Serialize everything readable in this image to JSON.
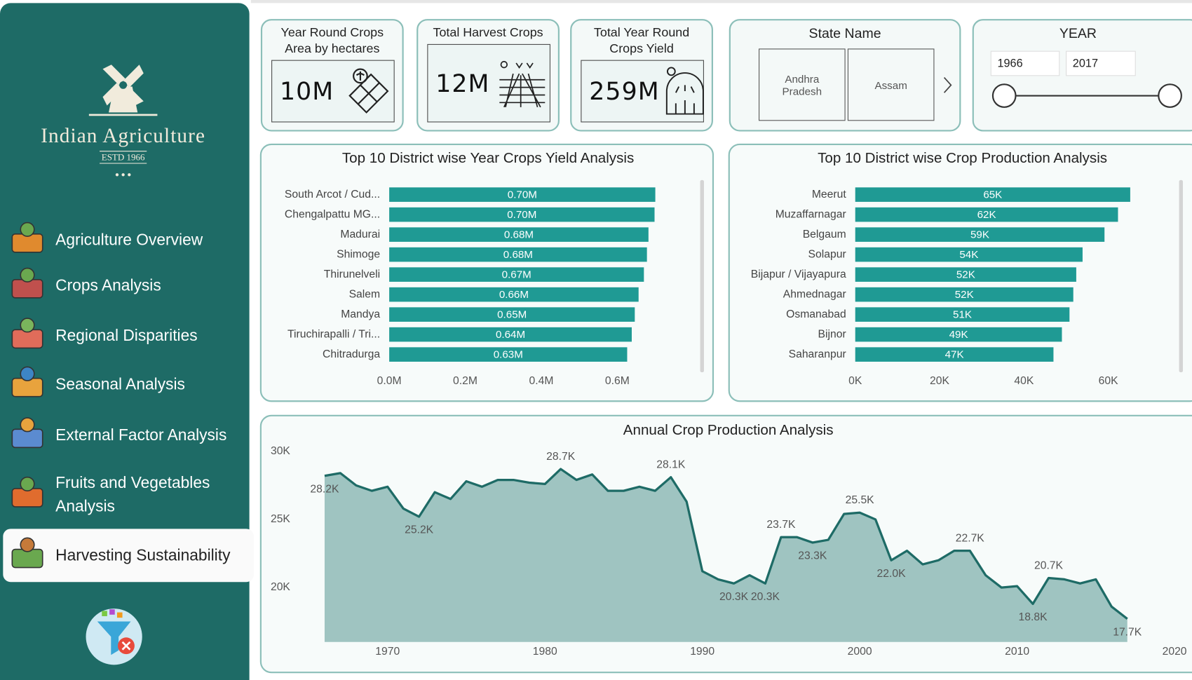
{
  "sidebar": {
    "brand": "Indian Agriculture",
    "established": "ESTD 1966",
    "nav": [
      "Agriculture Overview",
      "Crops Analysis",
      "Regional Disparities",
      "Seasonal Analysis",
      "External Factor Analysis",
      "Fruits and Vegetables Analysis",
      "Harvesting Sustainability"
    ],
    "active_nav": 6
  },
  "kpis": [
    {
      "title": "Year Round Crops Area by hectares",
      "value": "10M"
    },
    {
      "title": "Total Harvest Crops",
      "value": "12M"
    },
    {
      "title": "Total Year Round Crops Yield",
      "value": "259M"
    }
  ],
  "slicers": {
    "state": {
      "title": "State Name",
      "options": [
        "Andhra Pradesh",
        "Assam"
      ]
    },
    "year": {
      "title": "YEAR",
      "from": "1966",
      "to": "2017"
    }
  },
  "chart_data": [
    {
      "type": "bar",
      "orientation": "horizontal",
      "title": "Top 10 District wise Year Crops Yield Analysis",
      "categories": [
        "South Arcot / Cud...",
        "Chengalpattu MG...",
        "Madurai",
        "Shimoge",
        "Thirunelveli",
        "Salem",
        "Mandya",
        "Tiruchirapalli / Tri...",
        "Chitradurga"
      ],
      "values": [
        700000,
        698000,
        682000,
        678000,
        670000,
        656000,
        646000,
        638000,
        626000
      ],
      "value_labels": [
        "0.70M",
        "0.70M",
        "0.68M",
        "0.68M",
        "0.67M",
        "0.66M",
        "0.65M",
        "0.64M",
        "0.63M"
      ],
      "color": "#1f9a94",
      "xlim": [
        0,
        780000
      ],
      "xticks": [
        {
          "value": 0,
          "label": "0.0M"
        },
        {
          "value": 200000,
          "label": "0.2M"
        },
        {
          "value": 400000,
          "label": "0.4M"
        },
        {
          "value": 600000,
          "label": "0.6M"
        }
      ]
    },
    {
      "type": "bar",
      "orientation": "horizontal",
      "title": "Top 10 District wise Crop Production Analysis",
      "categories": [
        "Meerut",
        "Muzaffarnagar",
        "Belgaum",
        "Solapur",
        "Bijapur / Vijayapura",
        "Ahmednagar",
        "Osmanabad",
        "Bijnor",
        "Saharanpur"
      ],
      "values": [
        65200,
        62300,
        59100,
        53900,
        52400,
        51700,
        50800,
        49000,
        47000
      ],
      "value_labels": [
        "65K",
        "62K",
        "59K",
        "54K",
        "52K",
        "52K",
        "51K",
        "49K",
        "47K"
      ],
      "color": "#1f9a94",
      "xlim": [
        0,
        73000
      ],
      "xticks": [
        {
          "value": 0,
          "label": "0K"
        },
        {
          "value": 20000,
          "label": "20K"
        },
        {
          "value": 40000,
          "label": "40K"
        },
        {
          "value": 60000,
          "label": "60K"
        }
      ]
    },
    {
      "type": "area",
      "title": "Annual Crop Production Analysis",
      "x": [
        1966,
        1967,
        1968,
        1969,
        1970,
        1971,
        1972,
        1973,
        1974,
        1975,
        1976,
        1977,
        1978,
        1979,
        1980,
        1981,
        1982,
        1983,
        1984,
        1985,
        1986,
        1987,
        1988,
        1989,
        1990,
        1991,
        1992,
        1993,
        1994,
        1995,
        1996,
        1997,
        1998,
        1999,
        2000,
        2001,
        2002,
        2003,
        2004,
        2005,
        2006,
        2007,
        2008,
        2009,
        2010,
        2011,
        2012,
        2013,
        2014,
        2015,
        2016,
        2017
      ],
      "values": [
        28200,
        28400,
        27500,
        27100,
        27400,
        25800,
        25200,
        27000,
        26500,
        27800,
        27400,
        27900,
        27900,
        27700,
        27600,
        28700,
        27900,
        28300,
        27100,
        27100,
        27400,
        27100,
        28100,
        26300,
        21200,
        20600,
        20300,
        20900,
        20300,
        23700,
        23700,
        23300,
        23500,
        25400,
        25500,
        25000,
        22000,
        22700,
        21700,
        22000,
        22700,
        22700,
        20900,
        20000,
        20100,
        18800,
        20700,
        20600,
        20300,
        20600,
        18600,
        17700
      ],
      "value_labels": [
        "28.2K",
        null,
        null,
        null,
        null,
        null,
        "25.2K",
        null,
        null,
        null,
        null,
        null,
        null,
        null,
        null,
        "28.7K",
        null,
        null,
        null,
        null,
        null,
        null,
        "28.1K",
        null,
        null,
        null,
        "20.3K",
        null,
        "20.3K",
        "23.7K",
        null,
        "23.3K",
        null,
        null,
        "25.5K",
        null,
        "22.0K",
        null,
        null,
        null,
        null,
        "22.7K",
        null,
        null,
        null,
        "18.8K",
        "20.7K",
        null,
        null,
        null,
        null,
        "17.7K"
      ],
      "color": "#1e6b66",
      "fill": "#9fc4c1",
      "xlim": [
        1966,
        2020
      ],
      "xticks": [
        1970,
        1980,
        1990,
        2000,
        2010,
        2020
      ],
      "ylim": [
        16000,
        30000
      ],
      "yticks": [
        {
          "value": 20000,
          "label": "20K"
        },
        {
          "value": 25000,
          "label": "25K"
        },
        {
          "value": 30000,
          "label": "30K"
        }
      ]
    }
  ]
}
